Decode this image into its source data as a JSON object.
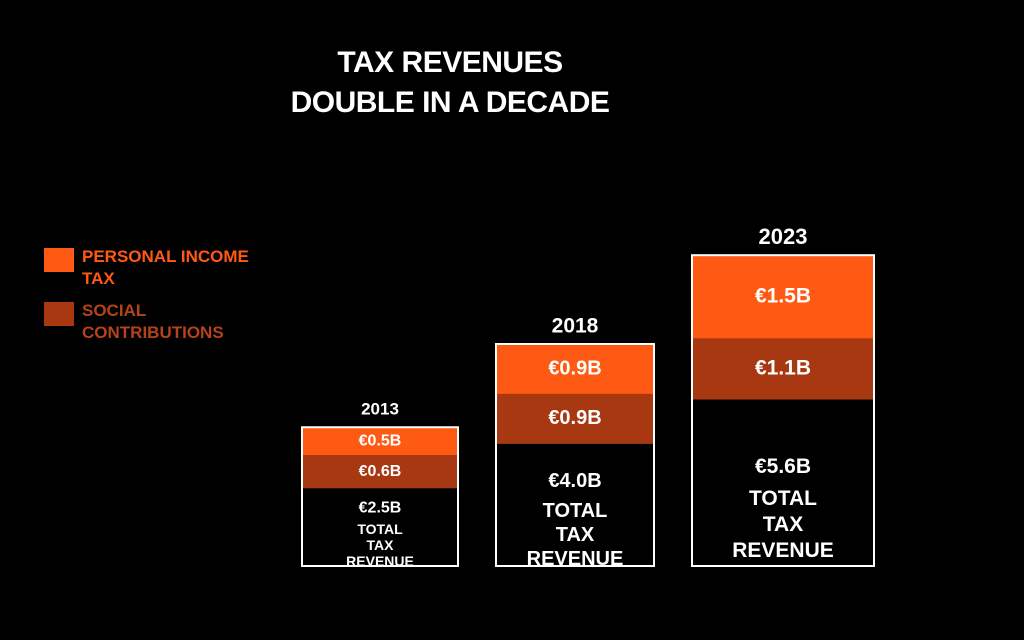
{
  "title_line1": "TAX REVENUES",
  "title_line2": "DOUBLE IN A DECADE",
  "colors": {
    "personal_income_tax": "#ff5a14",
    "social_contributions": "#a83812",
    "total": "#000000",
    "border": "#ffffff"
  },
  "legend": [
    {
      "label": "PERSONAL INCOME TAX",
      "color": "#ff5a14",
      "text_color": "#ff5a14"
    },
    {
      "label": "SOCIAL CONTRIBUTIONS",
      "color": "#a83812",
      "text_color": "#b5431a"
    }
  ],
  "chart_data": {
    "type": "bar",
    "stacked": true,
    "title": "TAX REVENUES DOUBLE IN A DECADE",
    "categories": [
      "2013",
      "2018",
      "2023"
    ],
    "series": [
      {
        "name": "PERSONAL INCOME TAX",
        "values": [
          0.5,
          0.9,
          1.5
        ],
        "labels": [
          "€0.5B",
          "€0.9B",
          "€1.5B"
        ]
      },
      {
        "name": "SOCIAL CONTRIBUTIONS",
        "values": [
          0.6,
          0.9,
          1.1
        ],
        "labels": [
          "€0.6B",
          "€0.9B",
          "€1.1B"
        ]
      }
    ],
    "totals": {
      "values": [
        2.5,
        4.0,
        5.6
      ],
      "labels": [
        "€2.5B",
        "€4.0B",
        "€5.6B"
      ]
    },
    "total_caption": [
      "TOTAL",
      "TAX",
      "REVENUE"
    ],
    "unit": "€ billions"
  }
}
